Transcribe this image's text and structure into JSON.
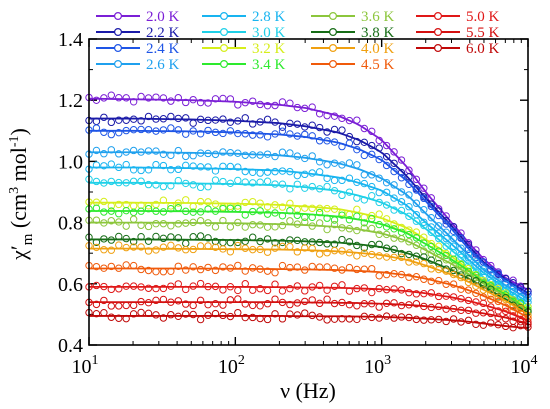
{
  "chart_data": {
    "type": "line",
    "xlabel": "ν (Hz)",
    "ylabel": "χ′m (cm³ mol⁻¹)",
    "x_scale": "log",
    "xlim": [
      10,
      10000
    ],
    "ylim": [
      0.4,
      1.4
    ],
    "x_ticks": [
      {
        "value": 10,
        "base": "10",
        "exp": "1"
      },
      {
        "value": 100,
        "base": "10",
        "exp": "2"
      },
      {
        "value": 1000,
        "base": "10",
        "exp": "3"
      },
      {
        "value": 10000,
        "base": "10",
        "exp": "4"
      }
    ],
    "y_ticks": [
      "0.4",
      "0.6",
      "0.8",
      "1.0",
      "1.2",
      "1.4"
    ],
    "legend_position": "top",
    "x_fit": [
      10,
      20,
      50,
      100,
      200,
      300,
      500,
      700,
      1000,
      1500,
      2000,
      3000,
      4000,
      5000,
      7000,
      10000
    ],
    "series": [
      {
        "name": "2.0 K",
        "color": "#7B1FD6",
        "plateau": 1.2,
        "fit": [
          1.205,
          1.203,
          1.2,
          1.195,
          1.185,
          1.175,
          1.15,
          1.12,
          1.07,
          0.98,
          0.9,
          0.8,
          0.73,
          0.68,
          0.62,
          0.58
        ]
      },
      {
        "name": "2.2 K",
        "color": "#1A1AA8",
        "plateau": 1.14,
        "fit": [
          1.14,
          1.14,
          1.137,
          1.133,
          1.125,
          1.115,
          1.095,
          1.07,
          1.03,
          0.95,
          0.88,
          0.79,
          0.72,
          0.67,
          0.615,
          0.57
        ]
      },
      {
        "name": "2.4 K",
        "color": "#1E55E6",
        "plateau": 1.1,
        "fit": [
          1.1,
          1.1,
          1.098,
          1.095,
          1.088,
          1.08,
          1.062,
          1.04,
          1.005,
          0.935,
          0.87,
          0.78,
          0.71,
          0.665,
          0.61,
          0.56
        ]
      },
      {
        "name": "2.6 K",
        "color": "#1FA0EE",
        "plateau": 1.03,
        "fit": [
          1.03,
          1.03,
          1.028,
          1.025,
          1.02,
          1.012,
          0.995,
          0.975,
          0.945,
          0.89,
          0.83,
          0.75,
          0.69,
          0.645,
          0.595,
          0.55
        ]
      },
      {
        "name": "2.8 K",
        "color": "#18B4F0",
        "plateau": 0.98,
        "fit": [
          0.98,
          0.98,
          0.978,
          0.975,
          0.97,
          0.962,
          0.948,
          0.93,
          0.905,
          0.855,
          0.8,
          0.73,
          0.675,
          0.635,
          0.585,
          0.54
        ]
      },
      {
        "name": "3.0 K",
        "color": "#1FD0E8",
        "plateau": 0.93,
        "fit": [
          0.93,
          0.93,
          0.928,
          0.926,
          0.922,
          0.916,
          0.904,
          0.888,
          0.866,
          0.825,
          0.78,
          0.71,
          0.66,
          0.62,
          0.575,
          0.53
        ]
      },
      {
        "name": "3.2 K",
        "color": "#D6EE1A",
        "plateau": 0.87,
        "fit": [
          0.865,
          0.865,
          0.864,
          0.862,
          0.858,
          0.853,
          0.845,
          0.832,
          0.815,
          0.782,
          0.745,
          0.69,
          0.645,
          0.61,
          0.57,
          0.52
        ]
      },
      {
        "name": "3.4 K",
        "color": "#2DEA2D",
        "plateau": 0.84,
        "fit": [
          0.838,
          0.838,
          0.837,
          0.835,
          0.832,
          0.828,
          0.82,
          0.81,
          0.795,
          0.765,
          0.73,
          0.68,
          0.64,
          0.605,
          0.565,
          0.515
        ]
      },
      {
        "name": "3.6 K",
        "color": "#8CC63C",
        "plateau": 0.8,
        "fit": [
          0.8,
          0.8,
          0.799,
          0.798,
          0.795,
          0.792,
          0.786,
          0.778,
          0.765,
          0.74,
          0.71,
          0.665,
          0.63,
          0.6,
          0.56,
          0.51
        ]
      },
      {
        "name": "3.8 K",
        "color": "#176D17",
        "plateau": 0.75,
        "fit": [
          0.745,
          0.745,
          0.744,
          0.743,
          0.741,
          0.739,
          0.735,
          0.729,
          0.72,
          0.7,
          0.68,
          0.645,
          0.615,
          0.59,
          0.55,
          0.505
        ]
      },
      {
        "name": "4.0 K",
        "color": "#F0A010",
        "plateau": 0.72,
        "fit": [
          0.715,
          0.715,
          0.714,
          0.713,
          0.712,
          0.71,
          0.706,
          0.701,
          0.694,
          0.678,
          0.66,
          0.63,
          0.605,
          0.58,
          0.545,
          0.5
        ]
      },
      {
        "name": "4.5 K",
        "color": "#F05A0A",
        "plateau": 0.65,
        "fit": [
          0.65,
          0.65,
          0.65,
          0.649,
          0.648,
          0.647,
          0.645,
          0.642,
          0.638,
          0.628,
          0.617,
          0.597,
          0.578,
          0.56,
          0.53,
          0.49
        ]
      },
      {
        "name": "5.0 K",
        "color": "#E01818",
        "plateau": 0.59,
        "fit": [
          0.59,
          0.59,
          0.59,
          0.59,
          0.589,
          0.588,
          0.587,
          0.585,
          0.582,
          0.576,
          0.569,
          0.556,
          0.543,
          0.531,
          0.51,
          0.48
        ]
      },
      {
        "name": "5.5 K",
        "color": "#D41010",
        "plateau": 0.54,
        "fit": [
          0.54,
          0.54,
          0.54,
          0.54,
          0.54,
          0.539,
          0.538,
          0.537,
          0.535,
          0.531,
          0.527,
          0.519,
          0.511,
          0.503,
          0.49,
          0.47
        ]
      },
      {
        "name": "6.0 K",
        "color": "#C00808",
        "plateau": 0.495,
        "fit": [
          0.495,
          0.495,
          0.495,
          0.495,
          0.495,
          0.494,
          0.494,
          0.493,
          0.492,
          0.489,
          0.486,
          0.481,
          0.476,
          0.47,
          0.462,
          0.455
        ]
      }
    ]
  }
}
